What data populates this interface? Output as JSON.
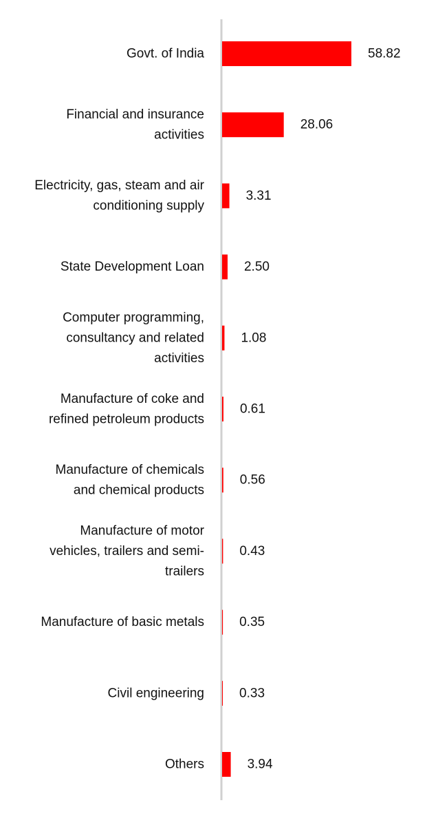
{
  "chart_data": {
    "type": "bar",
    "orientation": "horizontal",
    "categories": [
      "Govt. of India",
      "Financial and insurance activities",
      "Electricity, gas, steam and air conditioning supply",
      "State Development Loan",
      "Computer programming, consultancy and related activities",
      "Manufacture of coke and refined petroleum products",
      "Manufacture of chemicals and chemical products",
      "Manufacture of motor vehicles, trailers and semi-trailers",
      "Manufacture of basic metals",
      "Civil engineering",
      "Others"
    ],
    "category_lines": [
      [
        "Govt. of India"
      ],
      [
        "Financial and insurance",
        "activities"
      ],
      [
        "Electricity, gas, steam and air",
        "conditioning supply"
      ],
      [
        "State Development Loan"
      ],
      [
        "Computer programming,",
        "consultancy and related",
        "activities"
      ],
      [
        "Manufacture of coke and",
        "refined petroleum products"
      ],
      [
        "Manufacture of chemicals",
        "and chemical products"
      ],
      [
        "Manufacture of motor",
        "vehicles, trailers and semi-",
        "trailers"
      ],
      [
        "Manufacture of basic metals"
      ],
      [
        "Civil engineering"
      ],
      [
        "Others"
      ]
    ],
    "values": [
      58.82,
      28.06,
      3.31,
      2.5,
      1.08,
      0.61,
      0.56,
      0.43,
      0.35,
      0.33,
      3.94
    ],
    "value_labels": [
      "58.82",
      "28.06",
      "3.31",
      "2.50",
      "1.08",
      "0.61",
      "0.56",
      "0.43",
      "0.35",
      "0.33",
      "3.94"
    ],
    "xlim": [
      0,
      58.82
    ],
    "grid": false,
    "legend": "none",
    "colors": {
      "bar": "#ff0000",
      "axis": "#d0d0d0",
      "text": "#111111"
    }
  }
}
